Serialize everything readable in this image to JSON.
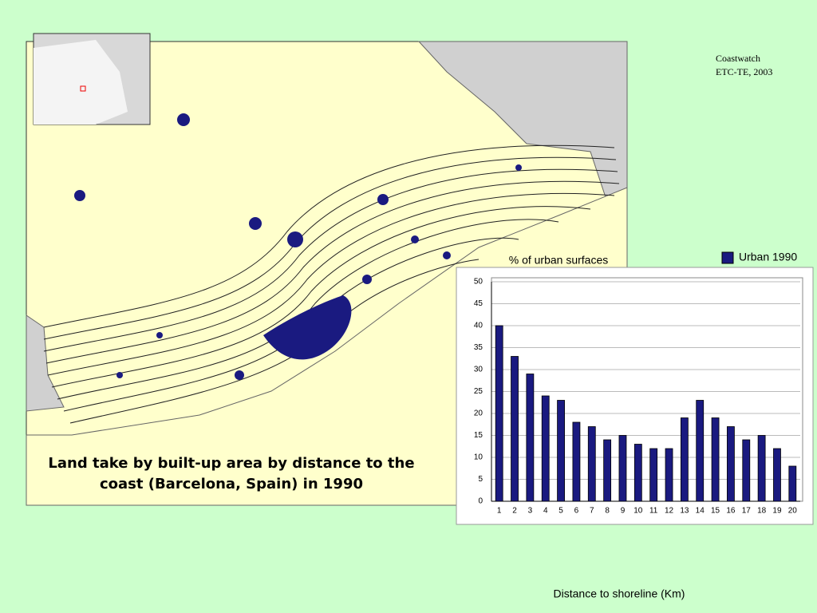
{
  "chart_data": {
    "type": "bar",
    "title": "Land take by built-up area by distance to the coast (Barcelona, Spain) in 1990",
    "annotations": [
      "Coastwatch",
      "ETC-TE, 2003"
    ],
    "y_label": "% of urban surfaces",
    "x_label": "Distance to shoreline (Km)",
    "categories": [
      "1",
      "2",
      "3",
      "4",
      "5",
      "6",
      "7",
      "8",
      "9",
      "10",
      "11",
      "12",
      "13",
      "14",
      "15",
      "16",
      "17",
      "18",
      "19",
      "20"
    ],
    "series": [
      {
        "name": "Urban 1990",
        "color": "#1a1a80",
        "values": [
          40,
          33,
          29,
          24,
          23,
          18,
          17,
          14,
          15,
          13,
          12,
          12,
          19,
          23,
          19,
          17,
          14,
          15,
          12,
          8
        ]
      }
    ],
    "ylim": [
      0,
      50
    ],
    "yticks": [
      0,
      5,
      10,
      15,
      20,
      25,
      30,
      35,
      40,
      45,
      50
    ],
    "grid": true
  }
}
